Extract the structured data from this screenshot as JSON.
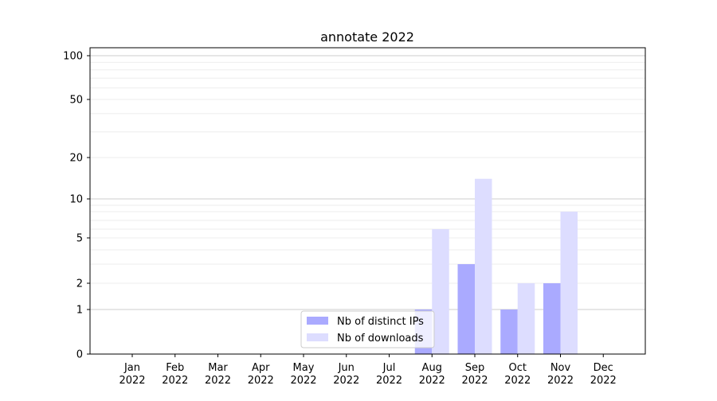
{
  "chart_data": {
    "type": "bar",
    "title": "annotate 2022",
    "xlabel": "",
    "ylabel": "",
    "categories": [
      "Jan\n2022",
      "Feb\n2022",
      "Mar\n2022",
      "Apr\n2022",
      "May\n2022",
      "Jun\n2022",
      "Jul\n2022",
      "Aug\n2022",
      "Sep\n2022",
      "Oct\n2022",
      "Nov\n2022",
      "Dec\n2022"
    ],
    "series": [
      {
        "name": "Nb of distinct IPs",
        "color": "#aaaaff",
        "values": [
          0,
          0,
          0,
          0,
          0,
          0,
          0,
          1,
          3,
          1,
          2,
          0
        ]
      },
      {
        "name": "Nb of downloads",
        "color": "#ddddff",
        "values": [
          0,
          0,
          0,
          0,
          0,
          0,
          0,
          6,
          14,
          2,
          8,
          0
        ]
      }
    ],
    "yscale": "symlog",
    "yticks": [
      0,
      1,
      2,
      5,
      10,
      20,
      50,
      100
    ],
    "ylim": [
      0,
      115
    ],
    "grid": true,
    "legend": "lower-center"
  }
}
